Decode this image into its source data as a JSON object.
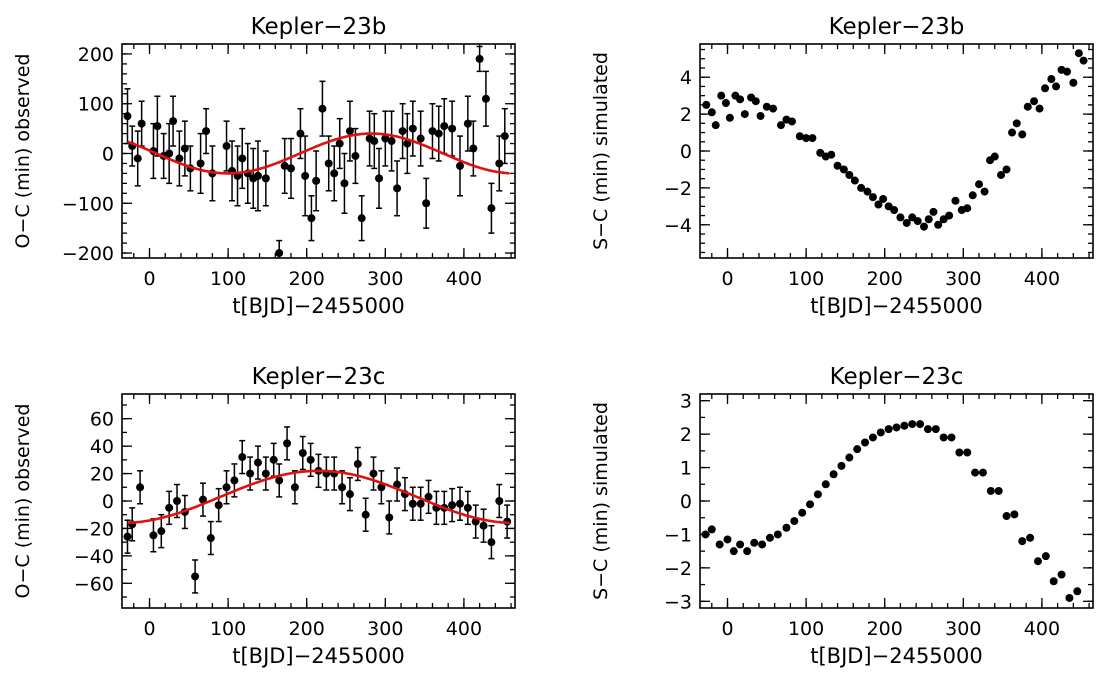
{
  "chart_data": [
    {
      "id": "b-observed",
      "type": "scatter",
      "title": "Kepler−23b",
      "xlabel": "t[BJD]−2455000",
      "ylabel": "O−C (min) observed",
      "xlim": [
        -35,
        465
      ],
      "ylim": [
        -210,
        220
      ],
      "xticks": [
        0,
        100,
        200,
        300,
        400
      ],
      "yticks": [
        -200,
        -100,
        0,
        100,
        200
      ],
      "xtick_labels": [
        "0",
        "100",
        "200",
        "300",
        "400"
      ],
      "ytick_labels": [
        "−200",
        "−100",
        "0",
        "100",
        "200"
      ],
      "x_minor": 20,
      "y_minor": 20,
      "has_errorbars": true,
      "points": [
        {
          "x": -28,
          "y": 75,
          "err": 55
        },
        {
          "x": -22,
          "y": 15,
          "err": 40
        },
        {
          "x": -15,
          "y": -10,
          "err": 55
        },
        {
          "x": -10,
          "y": 60,
          "err": 45
        },
        {
          "x": 5,
          "y": 5,
          "err": 55
        },
        {
          "x": 10,
          "y": 55,
          "err": 60
        },
        {
          "x": 18,
          "y": -5,
          "err": 45
        },
        {
          "x": 25,
          "y": 0,
          "err": 60
        },
        {
          "x": 30,
          "y": 65,
          "err": 50
        },
        {
          "x": 38,
          "y": -10,
          "err": 55
        },
        {
          "x": 45,
          "y": 10,
          "err": 55
        },
        {
          "x": 52,
          "y": -30,
          "err": 45
        },
        {
          "x": 65,
          "y": -20,
          "err": 60
        },
        {
          "x": 72,
          "y": 45,
          "err": 45
        },
        {
          "x": 80,
          "y": -40,
          "err": 55
        },
        {
          "x": 98,
          "y": 15,
          "err": 50
        },
        {
          "x": 105,
          "y": -35,
          "err": 60
        },
        {
          "x": 112,
          "y": -45,
          "err": 60
        },
        {
          "x": 118,
          "y": -10,
          "err": 60
        },
        {
          "x": 125,
          "y": -40,
          "err": 60
        },
        {
          "x": 132,
          "y": -50,
          "err": 60
        },
        {
          "x": 138,
          "y": -45,
          "err": 70
        },
        {
          "x": 148,
          "y": -50,
          "err": 55
        },
        {
          "x": 165,
          "y": -200,
          "err": 25
        },
        {
          "x": 172,
          "y": -25,
          "err": 55
        },
        {
          "x": 180,
          "y": -30,
          "err": 60
        },
        {
          "x": 192,
          "y": 40,
          "err": 50
        },
        {
          "x": 198,
          "y": -45,
          "err": 80
        },
        {
          "x": 206,
          "y": -130,
          "err": 45
        },
        {
          "x": 212,
          "y": -55,
          "err": 60
        },
        {
          "x": 220,
          "y": 90,
          "err": 55
        },
        {
          "x": 228,
          "y": -20,
          "err": 55
        },
        {
          "x": 235,
          "y": -40,
          "err": 55
        },
        {
          "x": 242,
          "y": 20,
          "err": 50
        },
        {
          "x": 248,
          "y": -60,
          "err": 60
        },
        {
          "x": 255,
          "y": 45,
          "err": 60
        },
        {
          "x": 262,
          "y": -5,
          "err": 55
        },
        {
          "x": 270,
          "y": -130,
          "err": 45
        },
        {
          "x": 280,
          "y": 30,
          "err": 55
        },
        {
          "x": 286,
          "y": 25,
          "err": 55
        },
        {
          "x": 292,
          "y": -50,
          "err": 60
        },
        {
          "x": 300,
          "y": 30,
          "err": 55
        },
        {
          "x": 308,
          "y": 25,
          "err": 60
        },
        {
          "x": 315,
          "y": -70,
          "err": 55
        },
        {
          "x": 322,
          "y": 45,
          "err": 55
        },
        {
          "x": 328,
          "y": 20,
          "err": 60
        },
        {
          "x": 335,
          "y": 50,
          "err": 55
        },
        {
          "x": 345,
          "y": 30,
          "err": 55
        },
        {
          "x": 352,
          "y": -100,
          "err": 50
        },
        {
          "x": 360,
          "y": 45,
          "err": 55
        },
        {
          "x": 368,
          "y": 40,
          "err": 55
        },
        {
          "x": 375,
          "y": 55,
          "err": 55
        },
        {
          "x": 385,
          "y": 50,
          "err": 55
        },
        {
          "x": 395,
          "y": -25,
          "err": 60
        },
        {
          "x": 405,
          "y": 60,
          "err": 55
        },
        {
          "x": 412,
          "y": 10,
          "err": 55
        },
        {
          "x": 420,
          "y": 190,
          "err": 25
        },
        {
          "x": 428,
          "y": 110,
          "err": 55
        },
        {
          "x": 435,
          "y": -110,
          "err": 50
        },
        {
          "x": 445,
          "y": -20,
          "err": 55
        },
        {
          "x": 452,
          "y": 35,
          "err": 55
        }
      ],
      "fit": {
        "color": "#e0120f",
        "amplitude": 40,
        "period": 365,
        "phase_x": 100,
        "sign": -1
      }
    },
    {
      "id": "b-simulated",
      "type": "scatter",
      "title": "Kepler−23b",
      "xlabel": "t[BJD]−2455000",
      "ylabel": "S−C (min) simulated",
      "xlim": [
        -35,
        465
      ],
      "ylim": [
        -5.8,
        5.8
      ],
      "xticks": [
        0,
        100,
        200,
        300,
        400
      ],
      "yticks": [
        -4,
        -2,
        0,
        2,
        4
      ],
      "xtick_labels": [
        "0",
        "100",
        "200",
        "300",
        "400"
      ],
      "ytick_labels": [
        "−4",
        "−2",
        "0",
        "2",
        "4"
      ],
      "x_minor": 20,
      "y_minor": 0.5,
      "has_errorbars": false,
      "points": [
        {
          "x": -27,
          "y": 2.5
        },
        {
          "x": -20,
          "y": 2.1
        },
        {
          "x": -15,
          "y": 1.4
        },
        {
          "x": -8,
          "y": 3.0
        },
        {
          "x": -2,
          "y": 2.6
        },
        {
          "x": 3,
          "y": 1.8
        },
        {
          "x": 10,
          "y": 3.0
        },
        {
          "x": 16,
          "y": 2.8
        },
        {
          "x": 22,
          "y": 2.0
        },
        {
          "x": 30,
          "y": 2.9
        },
        {
          "x": 36,
          "y": 2.7
        },
        {
          "x": 42,
          "y": 1.9
        },
        {
          "x": 50,
          "y": 2.4
        },
        {
          "x": 58,
          "y": 2.3
        },
        {
          "x": 68,
          "y": 1.4
        },
        {
          "x": 75,
          "y": 1.7
        },
        {
          "x": 82,
          "y": 1.6
        },
        {
          "x": 92,
          "y": 0.8
        },
        {
          "x": 100,
          "y": 0.7
        },
        {
          "x": 108,
          "y": 0.7
        },
        {
          "x": 118,
          "y": -0.1
        },
        {
          "x": 125,
          "y": -0.3
        },
        {
          "x": 132,
          "y": -0.2
        },
        {
          "x": 140,
          "y": -0.8
        },
        {
          "x": 148,
          "y": -1.0
        },
        {
          "x": 155,
          "y": -1.3
        },
        {
          "x": 162,
          "y": -1.6
        },
        {
          "x": 170,
          "y": -2.0
        },
        {
          "x": 178,
          "y": -2.2
        },
        {
          "x": 185,
          "y": -2.5
        },
        {
          "x": 192,
          "y": -2.9
        },
        {
          "x": 198,
          "y": -2.6
        },
        {
          "x": 205,
          "y": -3.0
        },
        {
          "x": 212,
          "y": -3.2
        },
        {
          "x": 220,
          "y": -3.6
        },
        {
          "x": 228,
          "y": -3.9
        },
        {
          "x": 235,
          "y": -3.6
        },
        {
          "x": 242,
          "y": -3.8
        },
        {
          "x": 250,
          "y": -4.1
        },
        {
          "x": 256,
          "y": -3.7
        },
        {
          "x": 262,
          "y": -3.3
        },
        {
          "x": 268,
          "y": -4.0
        },
        {
          "x": 275,
          "y": -3.7
        },
        {
          "x": 282,
          "y": -3.5
        },
        {
          "x": 290,
          "y": -2.7
        },
        {
          "x": 298,
          "y": -3.2
        },
        {
          "x": 305,
          "y": -3.1
        },
        {
          "x": 312,
          "y": -2.4
        },
        {
          "x": 320,
          "y": -1.8
        },
        {
          "x": 327,
          "y": -2.2
        },
        {
          "x": 334,
          "y": -0.5
        },
        {
          "x": 340,
          "y": -0.3
        },
        {
          "x": 348,
          "y": -1.3
        },
        {
          "x": 355,
          "y": -1.0
        },
        {
          "x": 362,
          "y": 1.0
        },
        {
          "x": 368,
          "y": 1.5
        },
        {
          "x": 375,
          "y": 0.9
        },
        {
          "x": 382,
          "y": 2.4
        },
        {
          "x": 390,
          "y": 2.7
        },
        {
          "x": 397,
          "y": 2.3
        },
        {
          "x": 404,
          "y": 3.4
        },
        {
          "x": 412,
          "y": 3.9
        },
        {
          "x": 418,
          "y": 3.5
        },
        {
          "x": 425,
          "y": 4.4
        },
        {
          "x": 432,
          "y": 4.3
        },
        {
          "x": 440,
          "y": 3.7
        },
        {
          "x": 447,
          "y": 5.3
        },
        {
          "x": 453,
          "y": 4.9
        }
      ]
    },
    {
      "id": "c-observed",
      "type": "scatter",
      "title": "Kepler−23c",
      "xlabel": "t[BJD]−2455000",
      "ylabel": "O−C (min) observed",
      "xlim": [
        -35,
        465
      ],
      "ylim": [
        -78,
        78
      ],
      "xticks": [
        0,
        100,
        200,
        300,
        400
      ],
      "yticks": [
        -60,
        -40,
        -20,
        0,
        20,
        40,
        60
      ],
      "xtick_labels": [
        "0",
        "100",
        "200",
        "300",
        "400"
      ],
      "ytick_labels": [
        "−60",
        "−40",
        "−20",
        "0",
        "20",
        "40",
        "60"
      ],
      "x_minor": 20,
      "y_minor": 10,
      "has_errorbars": true,
      "points": [
        {
          "x": -28,
          "y": -26,
          "err": 12
        },
        {
          "x": -22,
          "y": -17,
          "err": 12
        },
        {
          "x": -12,
          "y": 10,
          "err": 12
        },
        {
          "x": 5,
          "y": -25,
          "err": 12
        },
        {
          "x": 15,
          "y": -22,
          "err": 12
        },
        {
          "x": 25,
          "y": -5,
          "err": 12
        },
        {
          "x": 35,
          "y": 0,
          "err": 12
        },
        {
          "x": 45,
          "y": -8,
          "err": 12
        },
        {
          "x": 58,
          "y": -55,
          "err": 12
        },
        {
          "x": 68,
          "y": 1,
          "err": 12
        },
        {
          "x": 78,
          "y": -27,
          "err": 12
        },
        {
          "x": 88,
          "y": -3,
          "err": 12
        },
        {
          "x": 98,
          "y": 10,
          "err": 12
        },
        {
          "x": 108,
          "y": 15,
          "err": 12
        },
        {
          "x": 118,
          "y": 32,
          "err": 12
        },
        {
          "x": 128,
          "y": 20,
          "err": 12
        },
        {
          "x": 138,
          "y": 28,
          "err": 12
        },
        {
          "x": 148,
          "y": 20,
          "err": 12
        },
        {
          "x": 158,
          "y": 30,
          "err": 12
        },
        {
          "x": 165,
          "y": 15,
          "err": 12
        },
        {
          "x": 175,
          "y": 42,
          "err": 12
        },
        {
          "x": 185,
          "y": 10,
          "err": 12
        },
        {
          "x": 195,
          "y": 35,
          "err": 12
        },
        {
          "x": 205,
          "y": 30,
          "err": 12
        },
        {
          "x": 215,
          "y": 22,
          "err": 12
        },
        {
          "x": 225,
          "y": 20,
          "err": 12
        },
        {
          "x": 235,
          "y": 20,
          "err": 12
        },
        {
          "x": 245,
          "y": 10,
          "err": 12
        },
        {
          "x": 255,
          "y": 5,
          "err": 12
        },
        {
          "x": 265,
          "y": 27,
          "err": 12
        },
        {
          "x": 275,
          "y": -10,
          "err": 12
        },
        {
          "x": 285,
          "y": 20,
          "err": 12
        },
        {
          "x": 295,
          "y": 10,
          "err": 12
        },
        {
          "x": 305,
          "y": -12,
          "err": 12
        },
        {
          "x": 315,
          "y": 12,
          "err": 12
        },
        {
          "x": 325,
          "y": 5,
          "err": 12
        },
        {
          "x": 335,
          "y": -2,
          "err": 12
        },
        {
          "x": 345,
          "y": -2,
          "err": 12
        },
        {
          "x": 355,
          "y": 3,
          "err": 12
        },
        {
          "x": 365,
          "y": -5,
          "err": 12
        },
        {
          "x": 375,
          "y": -5,
          "err": 12
        },
        {
          "x": 385,
          "y": -3,
          "err": 12
        },
        {
          "x": 395,
          "y": -2,
          "err": 12
        },
        {
          "x": 405,
          "y": -5,
          "err": 12
        },
        {
          "x": 415,
          "y": -15,
          "err": 12
        },
        {
          "x": 425,
          "y": -18,
          "err": 12
        },
        {
          "x": 435,
          "y": -30,
          "err": 12
        },
        {
          "x": 445,
          "y": 0,
          "err": 12
        },
        {
          "x": 455,
          "y": -15,
          "err": 12
        }
      ],
      "fit": {
        "color": "#e0120f",
        "amplitude": 19,
        "period": 500,
        "phase_x": 215,
        "sign": 1,
        "offset": 3
      }
    },
    {
      "id": "c-simulated",
      "type": "scatter",
      "title": "Kepler−23c",
      "xlabel": "t[BJD]−2455000",
      "ylabel": "S−C (min) simulated",
      "xlim": [
        -35,
        465
      ],
      "ylim": [
        -3.2,
        3.2
      ],
      "xticks": [
        0,
        100,
        200,
        300,
        400
      ],
      "yticks": [
        -3,
        -2,
        -1,
        0,
        1,
        2,
        3
      ],
      "xtick_labels": [
        "0",
        "100",
        "200",
        "300",
        "400"
      ],
      "ytick_labels": [
        "−3",
        "−2",
        "−1",
        "0",
        "1",
        "2",
        "3"
      ],
      "x_minor": 20,
      "y_minor": 0.5,
      "has_errorbars": false,
      "points": [
        {
          "x": -28,
          "y": -1.0
        },
        {
          "x": -20,
          "y": -0.85
        },
        {
          "x": -10,
          "y": -1.3
        },
        {
          "x": 0,
          "y": -1.15
        },
        {
          "x": 8,
          "y": -1.5
        },
        {
          "x": 16,
          "y": -1.3
        },
        {
          "x": 25,
          "y": -1.5
        },
        {
          "x": 34,
          "y": -1.25
        },
        {
          "x": 44,
          "y": -1.3
        },
        {
          "x": 54,
          "y": -1.1
        },
        {
          "x": 64,
          "y": -1.0
        },
        {
          "x": 75,
          "y": -0.8
        },
        {
          "x": 85,
          "y": -0.6
        },
        {
          "x": 95,
          "y": -0.35
        },
        {
          "x": 105,
          "y": -0.1
        },
        {
          "x": 115,
          "y": 0.2
        },
        {
          "x": 125,
          "y": 0.5
        },
        {
          "x": 135,
          "y": 0.8
        },
        {
          "x": 145,
          "y": 1.05
        },
        {
          "x": 155,
          "y": 1.3
        },
        {
          "x": 165,
          "y": 1.55
        },
        {
          "x": 175,
          "y": 1.75
        },
        {
          "x": 185,
          "y": 1.9
        },
        {
          "x": 195,
          "y": 2.05
        },
        {
          "x": 205,
          "y": 2.15
        },
        {
          "x": 215,
          "y": 2.2
        },
        {
          "x": 225,
          "y": 2.25
        },
        {
          "x": 235,
          "y": 2.3
        },
        {
          "x": 245,
          "y": 2.3
        },
        {
          "x": 255,
          "y": 2.15
        },
        {
          "x": 265,
          "y": 2.15
        },
        {
          "x": 275,
          "y": 1.9
        },
        {
          "x": 285,
          "y": 1.9
        },
        {
          "x": 295,
          "y": 1.45
        },
        {
          "x": 305,
          "y": 1.45
        },
        {
          "x": 315,
          "y": 0.85
        },
        {
          "x": 325,
          "y": 0.85
        },
        {
          "x": 335,
          "y": 0.3
        },
        {
          "x": 345,
          "y": 0.3
        },
        {
          "x": 355,
          "y": -0.45
        },
        {
          "x": 365,
          "y": -0.4
        },
        {
          "x": 375,
          "y": -1.2
        },
        {
          "x": 385,
          "y": -1.1
        },
        {
          "x": 395,
          "y": -1.8
        },
        {
          "x": 405,
          "y": -1.65
        },
        {
          "x": 415,
          "y": -2.4
        },
        {
          "x": 425,
          "y": -2.2
        },
        {
          "x": 435,
          "y": -2.9
        },
        {
          "x": 445,
          "y": -2.7
        }
      ]
    }
  ]
}
